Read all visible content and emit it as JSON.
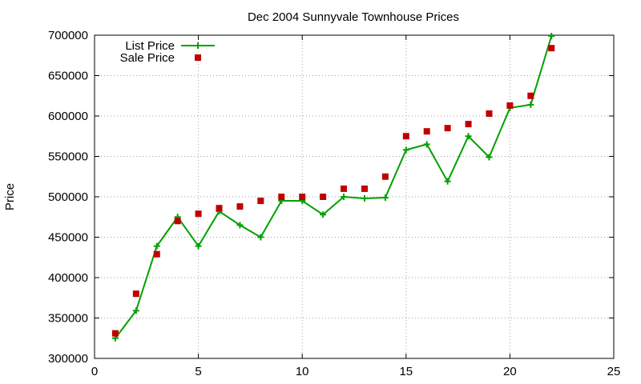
{
  "chart_data": {
    "type": "line",
    "title": "Dec 2004 Sunnyvale Townhouse Prices",
    "xlabel": "",
    "ylabel": "Price",
    "xlim": [
      0,
      25
    ],
    "ylim": [
      300000,
      700000
    ],
    "xticks": [
      0,
      5,
      10,
      15,
      20,
      25
    ],
    "yticks": [
      300000,
      350000,
      400000,
      450000,
      500000,
      550000,
      600000,
      650000,
      700000
    ],
    "grid": true,
    "legend_position": "top-left",
    "series": [
      {
        "name": "List Price",
        "style": "line-with-plus-markers",
        "color": "#00a000",
        "x": [
          1,
          2,
          3,
          4,
          5,
          6,
          7,
          8,
          9,
          10,
          11,
          12,
          13,
          14,
          15,
          16,
          17,
          18,
          19,
          20,
          21,
          22
        ],
        "y": [
          325000,
          359000,
          439000,
          475000,
          439000,
          482000,
          465000,
          450000,
          495000,
          495000,
          478000,
          500000,
          498000,
          499000,
          558000,
          565000,
          519000,
          575000,
          549000,
          610000,
          614000,
          699000
        ]
      },
      {
        "name": "Sale Price",
        "style": "square-markers",
        "color": "#c00000",
        "x": [
          1,
          2,
          3,
          4,
          5,
          6,
          7,
          8,
          9,
          10,
          11,
          12,
          13,
          14,
          15,
          16,
          17,
          18,
          19,
          20,
          21,
          22
        ],
        "y": [
          331000,
          380000,
          429000,
          470000,
          479000,
          486000,
          488000,
          495000,
          500000,
          500000,
          500000,
          510000,
          510000,
          525000,
          575000,
          581000,
          585000,
          590000,
          603000,
          613000,
          625000,
          684000
        ]
      }
    ]
  }
}
